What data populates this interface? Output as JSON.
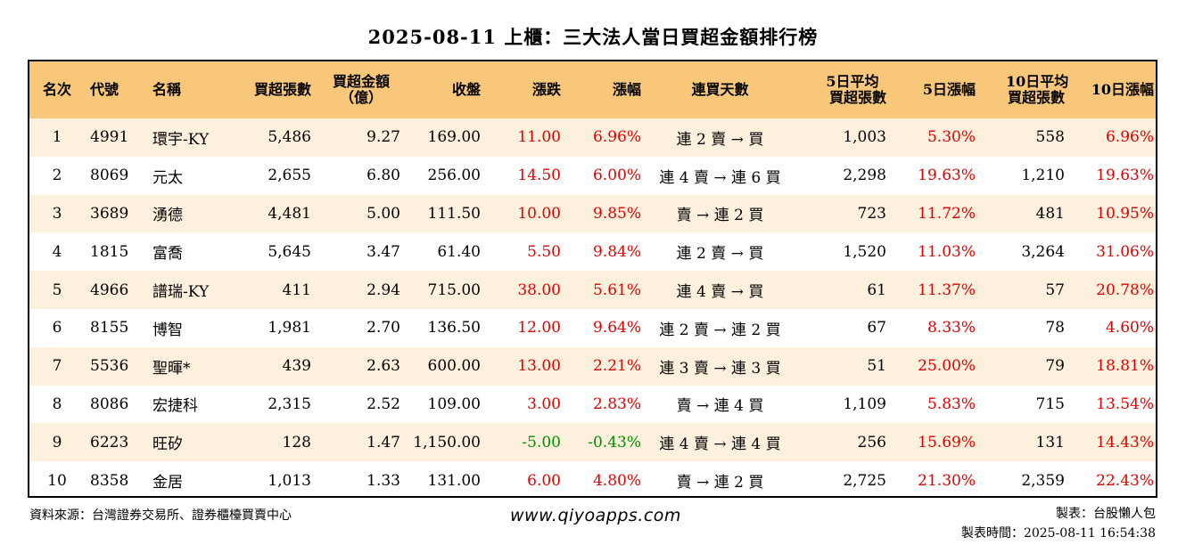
{
  "title": "2025-08-11 上櫃：三大法人當日買超金額排行榜",
  "columns": {
    "rank": "名次",
    "code": "代號",
    "name": "名稱",
    "buy_shares": "買超張數",
    "buy_amount_1": "買超金額",
    "buy_amount_2": "（億）",
    "close": "收盤",
    "change": "漲跌",
    "pct": "漲幅",
    "streak": "連買天數",
    "avg5_1": "5日平均",
    "avg5_2": "買超張數",
    "pct5": "5日漲幅",
    "avg10_1": "10日平均",
    "avg10_2": "買超張數",
    "pct10": "10日漲幅"
  },
  "colors": {
    "header_bg": "#f8c77a",
    "alt_row_bg": "#fdf0dc",
    "up": "#e00000",
    "down": "#009000"
  },
  "rows": [
    {
      "rank": "1",
      "code": "4991",
      "name": "環宇-KY",
      "buy_shares": "5,486",
      "buy_amount": "9.27",
      "close": "169.00",
      "change": "11.00",
      "pct": "6.96%",
      "streak": "連 2 賣 → 買",
      "avg5": "1,003",
      "pct5": "5.30%",
      "avg10": "558",
      "pct10": "6.96%"
    },
    {
      "rank": "2",
      "code": "8069",
      "name": "元太",
      "buy_shares": "2,655",
      "buy_amount": "6.80",
      "close": "256.00",
      "change": "14.50",
      "pct": "6.00%",
      "streak": "連 4 賣 → 連 6 買",
      "avg5": "2,298",
      "pct5": "19.63%",
      "avg10": "1,210",
      "pct10": "19.63%"
    },
    {
      "rank": "3",
      "code": "3689",
      "name": "湧德",
      "buy_shares": "4,481",
      "buy_amount": "5.00",
      "close": "111.50",
      "change": "10.00",
      "pct": "9.85%",
      "streak": "賣 → 連 2 買",
      "avg5": "723",
      "pct5": "11.72%",
      "avg10": "481",
      "pct10": "10.95%"
    },
    {
      "rank": "4",
      "code": "1815",
      "name": "富喬",
      "buy_shares": "5,645",
      "buy_amount": "3.47",
      "close": "61.40",
      "change": "5.50",
      "pct": "9.84%",
      "streak": "連 2 賣 → 買",
      "avg5": "1,520",
      "pct5": "11.03%",
      "avg10": "3,264",
      "pct10": "31.06%"
    },
    {
      "rank": "5",
      "code": "4966",
      "name": "譜瑞-KY",
      "buy_shares": "411",
      "buy_amount": "2.94",
      "close": "715.00",
      "change": "38.00",
      "pct": "5.61%",
      "streak": "連 4 賣 → 買",
      "avg5": "61",
      "pct5": "11.37%",
      "avg10": "57",
      "pct10": "20.78%"
    },
    {
      "rank": "6",
      "code": "8155",
      "name": "博智",
      "buy_shares": "1,981",
      "buy_amount": "2.70",
      "close": "136.50",
      "change": "12.00",
      "pct": "9.64%",
      "streak": "連 2 賣 → 連 2 買",
      "avg5": "67",
      "pct5": "8.33%",
      "avg10": "78",
      "pct10": "4.60%"
    },
    {
      "rank": "7",
      "code": "5536",
      "name": "聖暉*",
      "buy_shares": "439",
      "buy_amount": "2.63",
      "close": "600.00",
      "change": "13.00",
      "pct": "2.21%",
      "streak": "連 3 賣 → 連 3 買",
      "avg5": "51",
      "pct5": "25.00%",
      "avg10": "79",
      "pct10": "18.81%"
    },
    {
      "rank": "8",
      "code": "8086",
      "name": "宏捷科",
      "buy_shares": "2,315",
      "buy_amount": "2.52",
      "close": "109.00",
      "change": "3.00",
      "pct": "2.83%",
      "streak": "賣 → 連 4 買",
      "avg5": "1,109",
      "pct5": "5.83%",
      "avg10": "715",
      "pct10": "13.54%"
    },
    {
      "rank": "9",
      "code": "6223",
      "name": "旺矽",
      "buy_shares": "128",
      "buy_amount": "1.47",
      "close": "1,150.00",
      "change": "-5.00",
      "pct": "-0.43%",
      "streak": "連 4 賣 → 連 4 買",
      "avg5": "256",
      "pct5": "15.69%",
      "avg10": "131",
      "pct10": "14.43%"
    },
    {
      "rank": "10",
      "code": "8358",
      "name": "金居",
      "buy_shares": "1,013",
      "buy_amount": "1.33",
      "close": "131.00",
      "change": "6.00",
      "pct": "4.80%",
      "streak": "賣 → 連 2 買",
      "avg5": "2,725",
      "pct5": "21.30%",
      "avg10": "2,359",
      "pct10": "22.43%"
    }
  ],
  "footer": {
    "source": "資料來源：台灣證券交易所、證券櫃檯買賣中心",
    "website": "www.qiyoapps.com",
    "maker": "製表：台股懶人包",
    "made_time": "製表時間：2025-08-11 16:54:38"
  }
}
